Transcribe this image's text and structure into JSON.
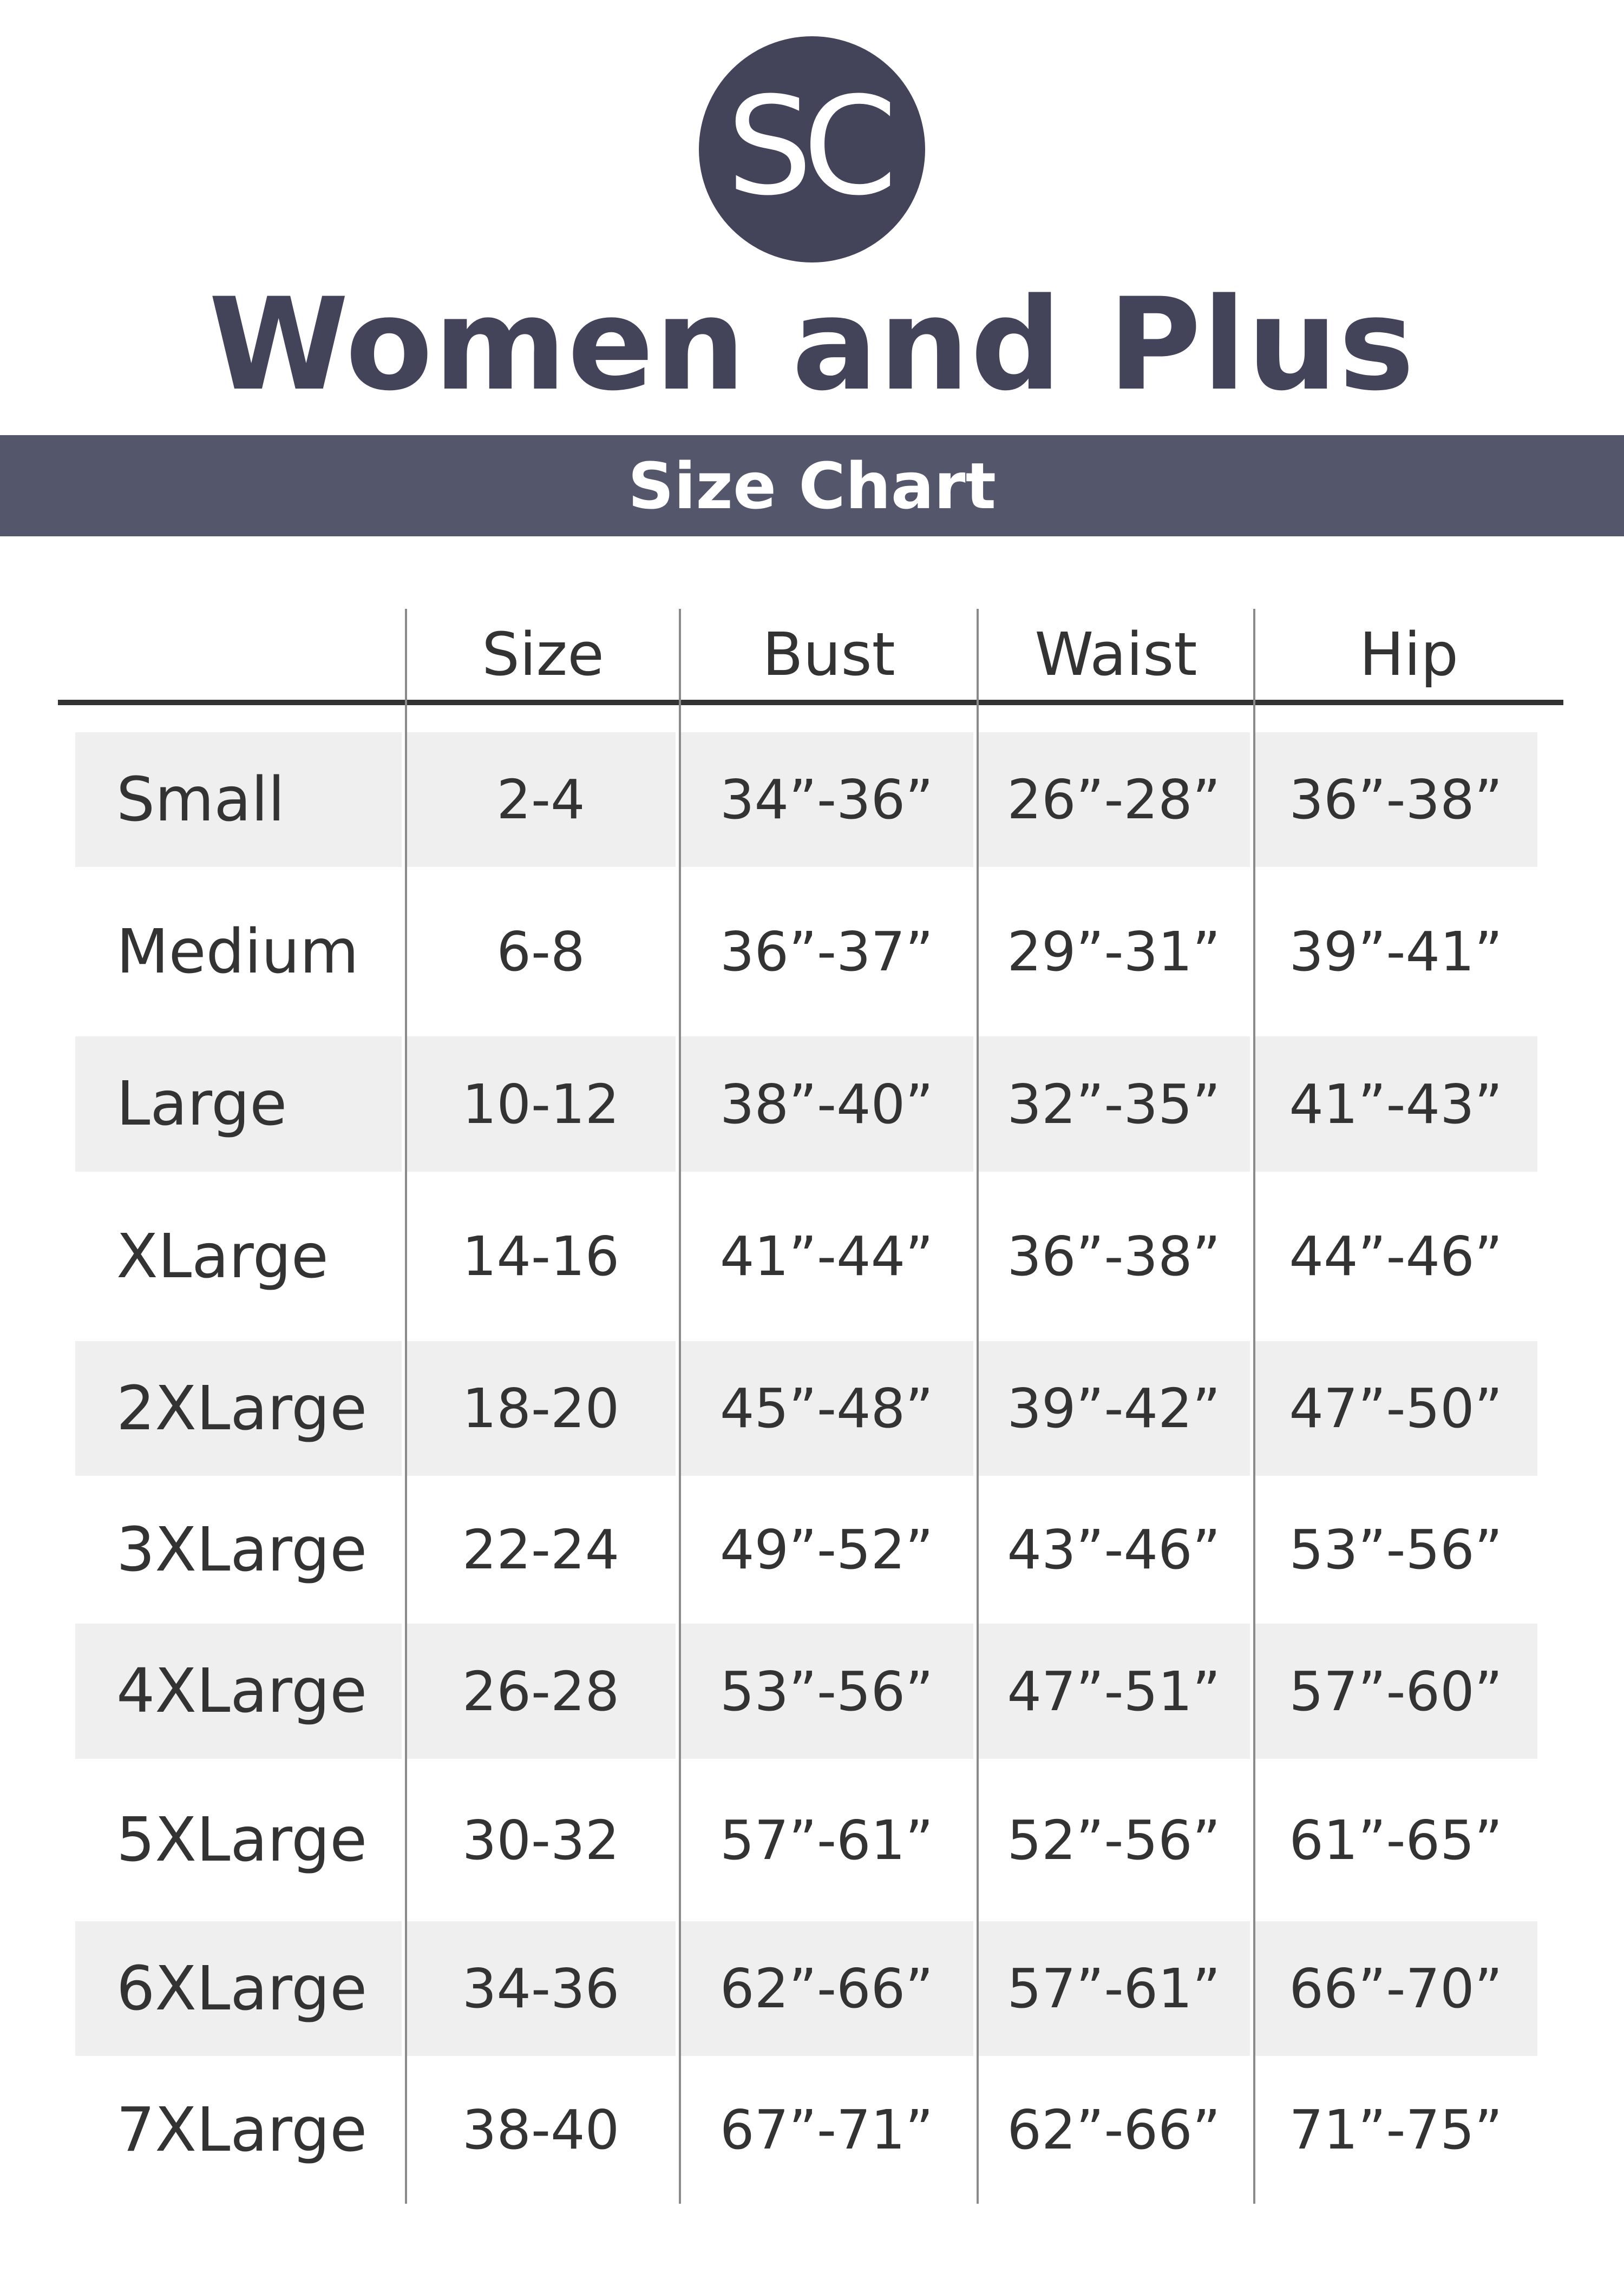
{
  "logo": {
    "text": "SC",
    "color": "#43435a"
  },
  "title": "Women and Plus",
  "banner": {
    "text": "Size Chart",
    "color": "#54566b"
  },
  "table": {
    "headers": [
      "",
      "Size",
      "Bust",
      "Waist",
      "Hip"
    ],
    "rows": [
      [
        "Small",
        "2-4",
        "34”-36”",
        "26”-28”",
        "36”-38”"
      ],
      [
        "Medium",
        "6-8",
        "36”-37”",
        "29”-31”",
        "39”-41”"
      ],
      [
        "Large",
        "10-12",
        "38”-40”",
        "32”-35”",
        "41”-43”"
      ],
      [
        "XLarge",
        "14-16",
        "41”-44”",
        "36”-38”",
        "44”-46”"
      ],
      [
        "2XLarge",
        "18-20",
        "45”-48”",
        "39”-42”",
        "47”-50”"
      ],
      [
        "3XLarge",
        "22-24",
        "49”-52”",
        "43”-46”",
        "53”-56”"
      ],
      [
        "4XLarge",
        "26-28",
        "53”-56”",
        "47”-51”",
        "57”-60”"
      ],
      [
        "5XLarge",
        "30-32",
        "57”-61”",
        "52”-56”",
        "61”-65”"
      ],
      [
        "6XLarge",
        "34-36",
        "62”-66”",
        "57”-61”",
        "66”-70”"
      ],
      [
        "7XLarge",
        "38-40",
        "67”-71”",
        "62”-66”",
        "71”-75”"
      ]
    ]
  }
}
